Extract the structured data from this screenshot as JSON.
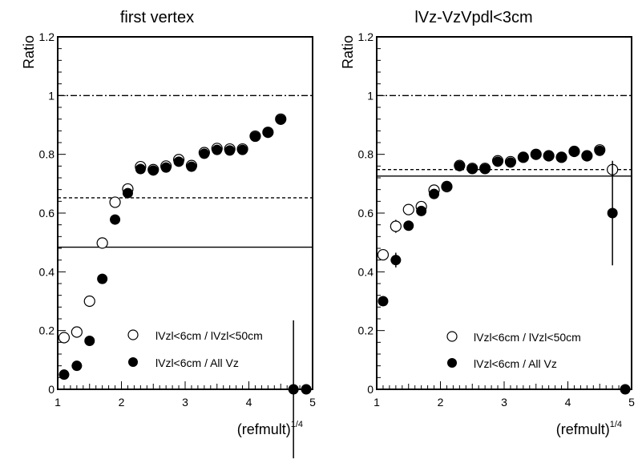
{
  "chart_data": [
    {
      "type": "scatter",
      "title": "first vertex",
      "xlabel": "(refmult)",
      "xlabel_sup": "1/4",
      "ylabel": "Ratio",
      "xlim": [
        1,
        5
      ],
      "ylim": [
        0,
        1.2
      ],
      "x_ticks": [
        "1",
        "2",
        "3",
        "4",
        "5"
      ],
      "y_ticks": [
        "0",
        "0.2",
        "0.4",
        "0.6",
        "0.8",
        "1",
        "1.2"
      ],
      "x_tick_values": [
        1,
        2,
        3,
        4,
        5
      ],
      "y_tick_values": [
        0,
        0.2,
        0.4,
        0.6,
        0.8,
        1.0,
        1.2
      ],
      "reference_lines": [
        {
          "style": "dashdot",
          "y": 1.0
        },
        {
          "style": "dashed",
          "y": 0.652
        },
        {
          "style": "solid",
          "y": 0.484
        }
      ],
      "series": [
        {
          "name": "lVzl<6cm / lVzl<50cm",
          "marker": "open-circle",
          "x": [
            1.1,
            1.3,
            1.5,
            1.7,
            1.9,
            2.1,
            2.3,
            2.5,
            2.7,
            2.9,
            3.1,
            3.3,
            3.5,
            3.7,
            3.9,
            4.1,
            4.3,
            4.5
          ],
          "y": [
            0.176,
            0.195,
            0.3,
            0.498,
            0.637,
            0.682,
            0.758,
            0.748,
            0.76,
            0.782,
            0.762,
            0.806,
            0.82,
            0.818,
            0.818,
            0.862,
            0.875,
            0.92
          ],
          "err": [
            0,
            0,
            0,
            0,
            0,
            0,
            0,
            0,
            0,
            0,
            0,
            0,
            0,
            0,
            0,
            0,
            0,
            0
          ]
        },
        {
          "name": "lVzl<6cm / All Vz",
          "marker": "filled-circle",
          "x": [
            1.1,
            1.3,
            1.5,
            1.7,
            1.9,
            2.1,
            2.3,
            2.5,
            2.7,
            2.9,
            3.1,
            3.3,
            3.5,
            3.7,
            3.9,
            4.1,
            4.3,
            4.5,
            4.7,
            4.9
          ],
          "y": [
            0.05,
            0.08,
            0.165,
            0.376,
            0.578,
            0.668,
            0.75,
            0.745,
            0.755,
            0.775,
            0.758,
            0.802,
            0.815,
            0.813,
            0.815,
            0.86,
            0.875,
            0.918,
            0.0,
            0.0
          ],
          "err": [
            0,
            0,
            0,
            0,
            0,
            0,
            0,
            0,
            0,
            0,
            0,
            0,
            0,
            0,
            0,
            0,
            0,
            0,
            0.235,
            0
          ]
        }
      ]
    },
    {
      "type": "scatter",
      "title": "lVz-VzVpdl<3cm",
      "xlabel": "(refmult)",
      "xlabel_sup": "1/4",
      "ylabel": "Ratio",
      "xlim": [
        1,
        5
      ],
      "ylim": [
        0,
        1.2
      ],
      "x_ticks": [
        "1",
        "2",
        "3",
        "4",
        "5"
      ],
      "y_ticks": [
        "0",
        "0.2",
        "0.4",
        "0.6",
        "0.8",
        "1",
        "1.2"
      ],
      "x_tick_values": [
        1,
        2,
        3,
        4,
        5
      ],
      "y_tick_values": [
        0,
        0.2,
        0.4,
        0.6,
        0.8,
        1.0,
        1.2
      ],
      "reference_lines": [
        {
          "style": "dashdot",
          "y": 1.0
        },
        {
          "style": "dashed",
          "y": 0.748
        },
        {
          "style": "solid",
          "y": 0.726
        }
      ],
      "series": [
        {
          "name": "lVzl<6cm / lVzl<50cm",
          "marker": "open-circle",
          "x": [
            1.1,
            1.3,
            1.5,
            1.7,
            1.9,
            2.1,
            2.3,
            2.5,
            2.7,
            2.9,
            3.1,
            3.3,
            3.5,
            3.7,
            3.9,
            4.1,
            4.3,
            4.5,
            4.7
          ],
          "y": [
            0.458,
            0.555,
            0.612,
            0.622,
            0.678,
            0.69,
            0.762,
            0.752,
            0.752,
            0.778,
            0.775,
            0.79,
            0.8,
            0.795,
            0.79,
            0.81,
            0.795,
            0.815,
            0.748
          ],
          "err": [
            0,
            0.022,
            0,
            0.016,
            0,
            0,
            0,
            0,
            0,
            0,
            0,
            0,
            0,
            0,
            0,
            0,
            0,
            0,
            0
          ]
        },
        {
          "name": "lVzl<6cm / All Vz",
          "marker": "filled-circle",
          "x": [
            1.1,
            1.3,
            1.5,
            1.7,
            1.9,
            2.1,
            2.3,
            2.5,
            2.7,
            2.9,
            3.1,
            3.3,
            3.5,
            3.7,
            3.9,
            4.1,
            4.3,
            4.5,
            4.7,
            4.9
          ],
          "y": [
            0.3,
            0.44,
            0.557,
            0.607,
            0.665,
            0.692,
            0.76,
            0.75,
            0.75,
            0.775,
            0.772,
            0.79,
            0.8,
            0.795,
            0.79,
            0.81,
            0.795,
            0.812,
            0.6,
            0.0
          ],
          "err": [
            0,
            0.025,
            0,
            0,
            0,
            0,
            0,
            0,
            0,
            0,
            0,
            0,
            0,
            0,
            0,
            0,
            0,
            0,
            0.178,
            0
          ]
        }
      ]
    }
  ]
}
